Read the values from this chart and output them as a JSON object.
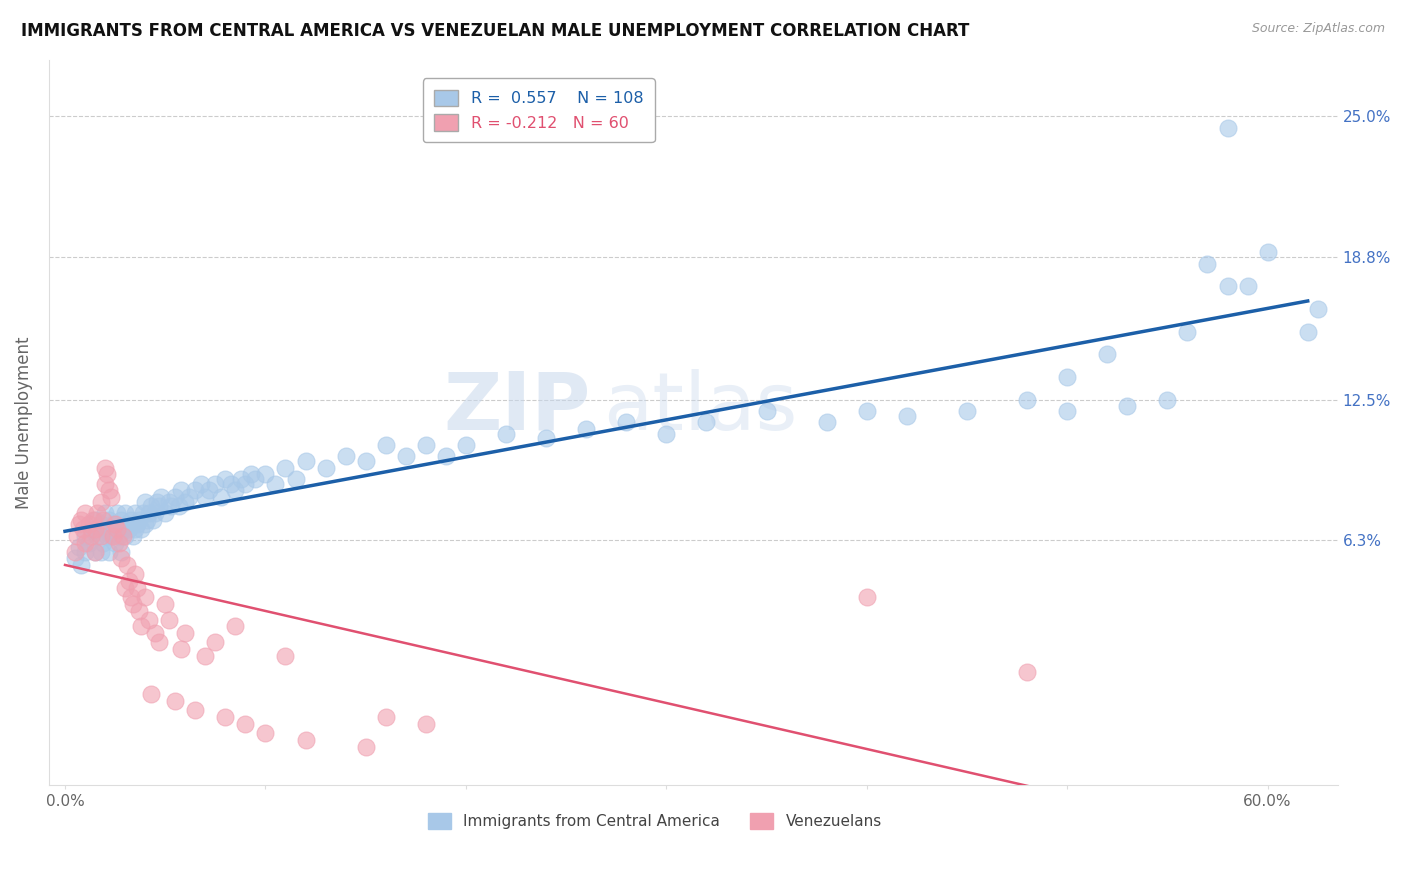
{
  "title": "IMMIGRANTS FROM CENTRAL AMERICA VS VENEZUELAN MALE UNEMPLOYMENT CORRELATION CHART",
  "source": "Source: ZipAtlas.com",
  "ylabel": "Male Unemployment",
  "x_ticks": [
    0.0,
    0.1,
    0.2,
    0.3,
    0.4,
    0.5,
    0.6
  ],
  "x_tick_labels": [
    "0.0%",
    "",
    "",
    "",
    "",
    "",
    "60.0%"
  ],
  "y_ticks": [
    0.063,
    0.125,
    0.188,
    0.25
  ],
  "y_tick_labels": [
    "6.3%",
    "12.5%",
    "18.8%",
    "25.0%"
  ],
  "xlim": [
    -0.008,
    0.635
  ],
  "ylim": [
    -0.045,
    0.275
  ],
  "blue_R": 0.557,
  "blue_N": 108,
  "pink_R": -0.212,
  "pink_N": 60,
  "blue_color": "#a8c8e8",
  "pink_color": "#f0a0b0",
  "blue_line_color": "#1c5fa8",
  "pink_line_color": "#e05070",
  "title_fontsize": 12,
  "watermark_zip": "ZIP",
  "watermark_atlas": "atlas",
  "legend_label_blue": "Immigrants from Central America",
  "legend_label_pink": "Venezuelans",
  "blue_scatter_x": [
    0.005,
    0.007,
    0.008,
    0.01,
    0.01,
    0.012,
    0.013,
    0.015,
    0.015,
    0.016,
    0.018,
    0.018,
    0.019,
    0.02,
    0.02,
    0.021,
    0.022,
    0.022,
    0.023,
    0.024,
    0.025,
    0.025,
    0.026,
    0.027,
    0.028,
    0.028,
    0.029,
    0.03,
    0.03,
    0.031,
    0.032,
    0.033,
    0.034,
    0.035,
    0.035,
    0.036,
    0.037,
    0.038,
    0.039,
    0.04,
    0.04,
    0.041,
    0.042,
    0.043,
    0.044,
    0.045,
    0.046,
    0.047,
    0.048,
    0.05,
    0.052,
    0.053,
    0.055,
    0.057,
    0.058,
    0.06,
    0.062,
    0.065,
    0.068,
    0.07,
    0.072,
    0.075,
    0.078,
    0.08,
    0.083,
    0.085,
    0.088,
    0.09,
    0.093,
    0.095,
    0.1,
    0.105,
    0.11,
    0.115,
    0.12,
    0.13,
    0.14,
    0.15,
    0.16,
    0.17,
    0.18,
    0.19,
    0.2,
    0.22,
    0.24,
    0.26,
    0.28,
    0.3,
    0.32,
    0.35,
    0.38,
    0.4,
    0.42,
    0.45,
    0.48,
    0.5,
    0.53,
    0.55,
    0.57,
    0.58,
    0.59,
    0.6,
    0.62,
    0.625,
    0.58,
    0.56,
    0.52,
    0.5
  ],
  "blue_scatter_y": [
    0.055,
    0.06,
    0.052,
    0.058,
    0.065,
    0.062,
    0.068,
    0.058,
    0.072,
    0.065,
    0.07,
    0.058,
    0.062,
    0.068,
    0.075,
    0.065,
    0.072,
    0.058,
    0.065,
    0.07,
    0.068,
    0.062,
    0.075,
    0.065,
    0.072,
    0.058,
    0.068,
    0.075,
    0.065,
    0.07,
    0.068,
    0.072,
    0.065,
    0.075,
    0.068,
    0.07,
    0.072,
    0.068,
    0.075,
    0.07,
    0.08,
    0.072,
    0.075,
    0.078,
    0.072,
    0.075,
    0.08,
    0.078,
    0.082,
    0.075,
    0.08,
    0.078,
    0.082,
    0.078,
    0.085,
    0.08,
    0.082,
    0.085,
    0.088,
    0.082,
    0.085,
    0.088,
    0.082,
    0.09,
    0.088,
    0.085,
    0.09,
    0.088,
    0.092,
    0.09,
    0.092,
    0.088,
    0.095,
    0.09,
    0.098,
    0.095,
    0.1,
    0.098,
    0.105,
    0.1,
    0.105,
    0.1,
    0.105,
    0.11,
    0.108,
    0.112,
    0.115,
    0.11,
    0.115,
    0.12,
    0.115,
    0.12,
    0.118,
    0.12,
    0.125,
    0.12,
    0.122,
    0.125,
    0.185,
    0.245,
    0.175,
    0.19,
    0.155,
    0.165,
    0.175,
    0.155,
    0.145,
    0.135
  ],
  "pink_scatter_x": [
    0.005,
    0.006,
    0.007,
    0.008,
    0.009,
    0.01,
    0.01,
    0.012,
    0.013,
    0.014,
    0.015,
    0.015,
    0.016,
    0.018,
    0.018,
    0.019,
    0.02,
    0.02,
    0.021,
    0.022,
    0.023,
    0.024,
    0.025,
    0.026,
    0.027,
    0.028,
    0.029,
    0.03,
    0.031,
    0.032,
    0.033,
    0.034,
    0.035,
    0.036,
    0.037,
    0.038,
    0.04,
    0.042,
    0.043,
    0.045,
    0.047,
    0.05,
    0.052,
    0.055,
    0.058,
    0.06,
    0.065,
    0.07,
    0.075,
    0.08,
    0.085,
    0.09,
    0.1,
    0.11,
    0.12,
    0.15,
    0.16,
    0.18,
    0.4,
    0.48
  ],
  "pink_scatter_y": [
    0.058,
    0.065,
    0.07,
    0.072,
    0.068,
    0.075,
    0.062,
    0.07,
    0.065,
    0.072,
    0.068,
    0.058,
    0.075,
    0.065,
    0.08,
    0.072,
    0.095,
    0.088,
    0.092,
    0.085,
    0.082,
    0.065,
    0.07,
    0.068,
    0.062,
    0.055,
    0.065,
    0.042,
    0.052,
    0.045,
    0.038,
    0.035,
    0.048,
    0.042,
    0.032,
    0.025,
    0.038,
    0.028,
    -0.005,
    0.022,
    0.018,
    0.035,
    0.028,
    -0.008,
    0.015,
    0.022,
    -0.012,
    0.012,
    0.018,
    -0.015,
    0.025,
    -0.018,
    -0.022,
    0.012,
    -0.025,
    -0.028,
    -0.015,
    -0.018,
    0.038,
    0.005
  ]
}
